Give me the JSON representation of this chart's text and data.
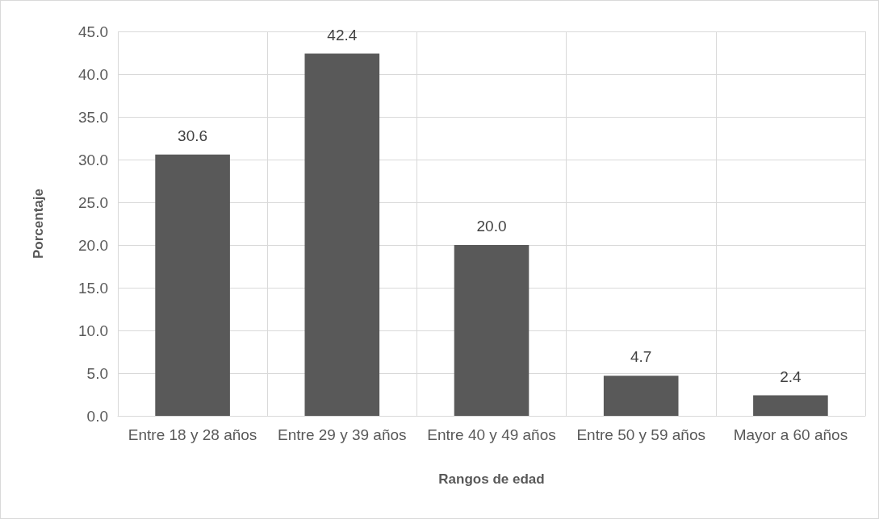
{
  "chart_data": {
    "type": "bar",
    "xlabel": "Rangos de edad",
    "ylabel": "Porcentaje",
    "categories": [
      "Entre 18 y 28 años",
      "Entre 29 y 39 años",
      "Entre 40 y 49 años",
      "Entre 50 y 59 años",
      "Mayor a 60 años"
    ],
    "values": [
      30.6,
      42.4,
      20.0,
      4.7,
      2.4
    ],
    "value_labels": [
      "30.6",
      "42.4",
      "20.0",
      "4.7",
      "2.4"
    ],
    "color": "#595959",
    "ylim": [
      0,
      45
    ],
    "yticks": [
      {
        "value": 0,
        "label": "0.0"
      },
      {
        "value": 5,
        "label": "5.0"
      },
      {
        "value": 10,
        "label": "10.0"
      },
      {
        "value": 15,
        "label": "15.0"
      },
      {
        "value": 20,
        "label": "20.0"
      },
      {
        "value": 25,
        "label": "25.0"
      },
      {
        "value": 30,
        "label": "30.0"
      },
      {
        "value": 35,
        "label": "35.0"
      },
      {
        "value": 40,
        "label": "40.0"
      },
      {
        "value": 45,
        "label": "45.0"
      }
    ],
    "grid": true
  }
}
